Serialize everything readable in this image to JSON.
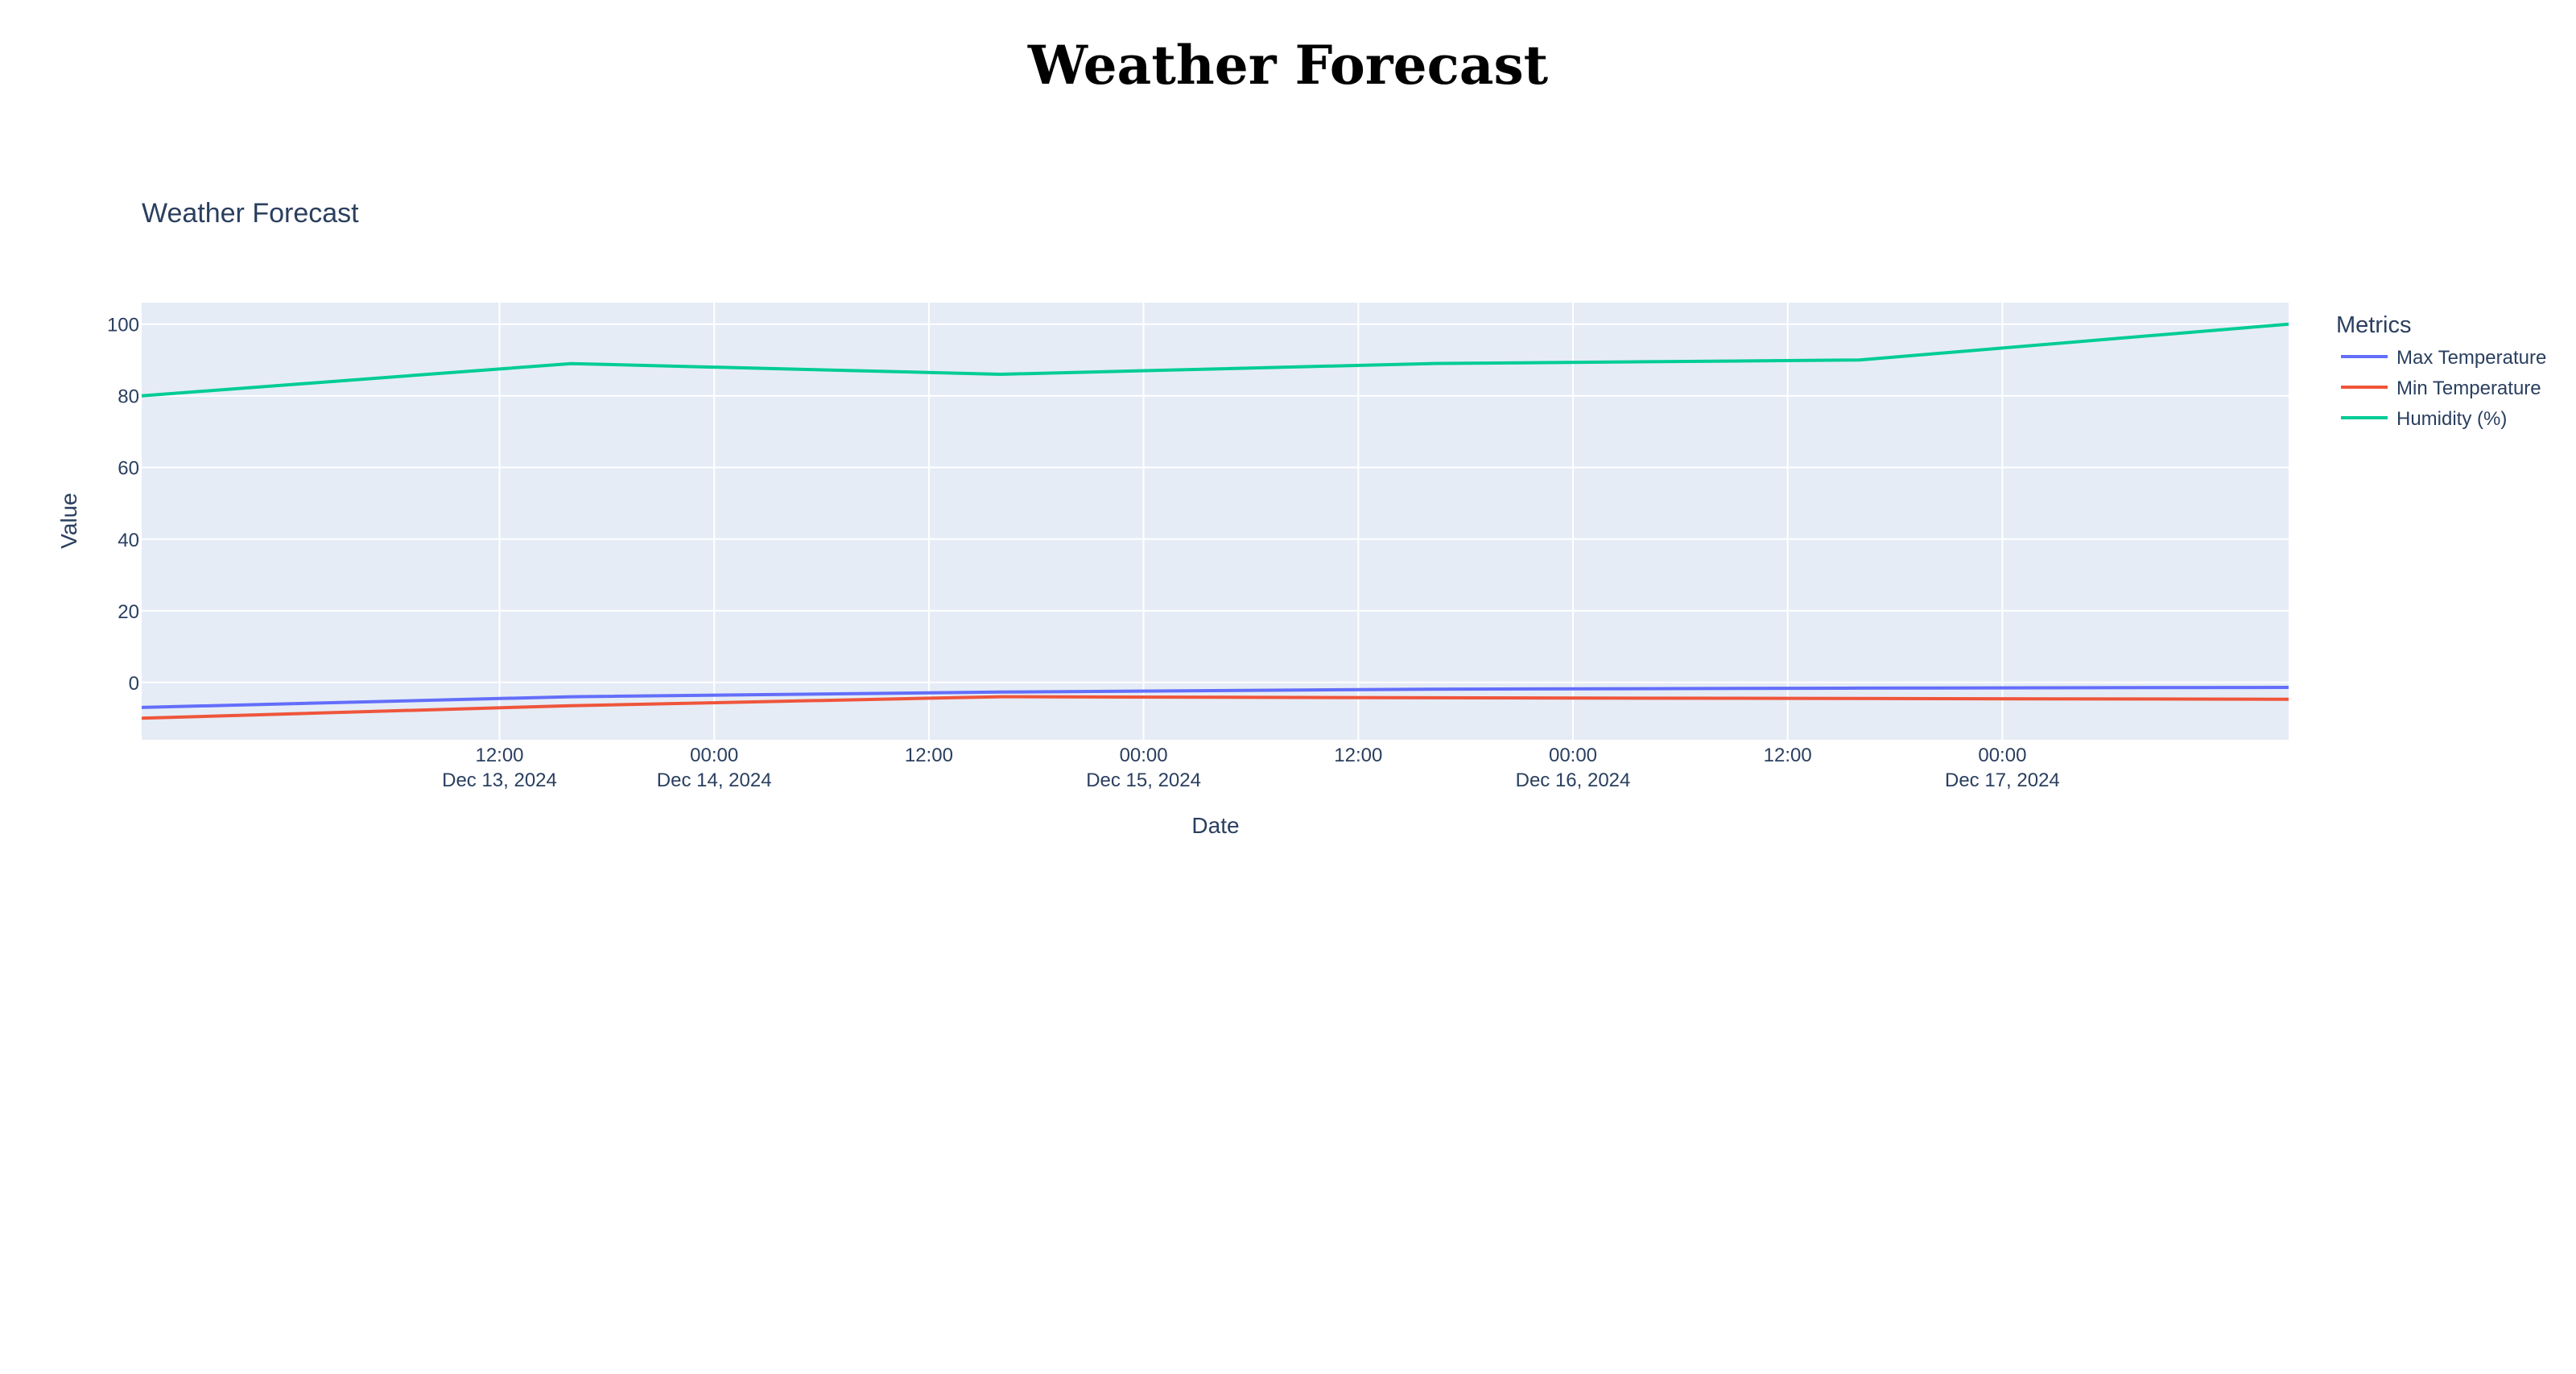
{
  "page": {
    "heading": "Weather Forecast"
  },
  "chart_data": {
    "type": "line",
    "title": "Weather Forecast",
    "xlabel": "Date",
    "ylabel": "Value",
    "legend_title": "Metrics",
    "legend_position": "top-right, outside plot",
    "grid": true,
    "x_unit": "date",
    "xlim": [
      "2024-12-12 16:00",
      "2024-12-17 16:00"
    ],
    "ylim": [
      -16,
      106
    ],
    "x_ticks": [
      {
        "value": "2024-12-13 12:00",
        "label": "12:00",
        "sublabel": "Dec 13, 2024"
      },
      {
        "value": "2024-12-14 00:00",
        "label": "00:00",
        "sublabel": "Dec 14, 2024"
      },
      {
        "value": "2024-12-14 12:00",
        "label": "12:00",
        "sublabel": ""
      },
      {
        "value": "2024-12-15 00:00",
        "label": "00:00",
        "sublabel": "Dec 15, 2024"
      },
      {
        "value": "2024-12-15 12:00",
        "label": "12:00",
        "sublabel": ""
      },
      {
        "value": "2024-12-16 00:00",
        "label": "00:00",
        "sublabel": "Dec 16, 2024"
      },
      {
        "value": "2024-12-16 12:00",
        "label": "12:00",
        "sublabel": ""
      },
      {
        "value": "2024-12-17 00:00",
        "label": "00:00",
        "sublabel": "Dec 17, 2024"
      }
    ],
    "y_ticks": [
      0,
      20,
      40,
      60,
      80,
      100
    ],
    "x": [
      "2024-12-12 16:00",
      "2024-12-13 16:00",
      "2024-12-14 16:00",
      "2024-12-15 16:00",
      "2024-12-16 16:00",
      "2024-12-17 16:00"
    ],
    "series": [
      {
        "name": "Max Temperature",
        "color": "#636efa",
        "values": [
          -7,
          -4,
          -2.7,
          -1.9,
          -1.6,
          -1.4
        ]
      },
      {
        "name": "Min Temperature",
        "color": "#ef553b",
        "values": [
          -10,
          -6.5,
          -4,
          -4.3,
          -4.5,
          -4.7
        ]
      },
      {
        "name": "Humidity (%)",
        "color": "#00cc96",
        "values": [
          80,
          89,
          86,
          89,
          90,
          100
        ]
      }
    ]
  }
}
